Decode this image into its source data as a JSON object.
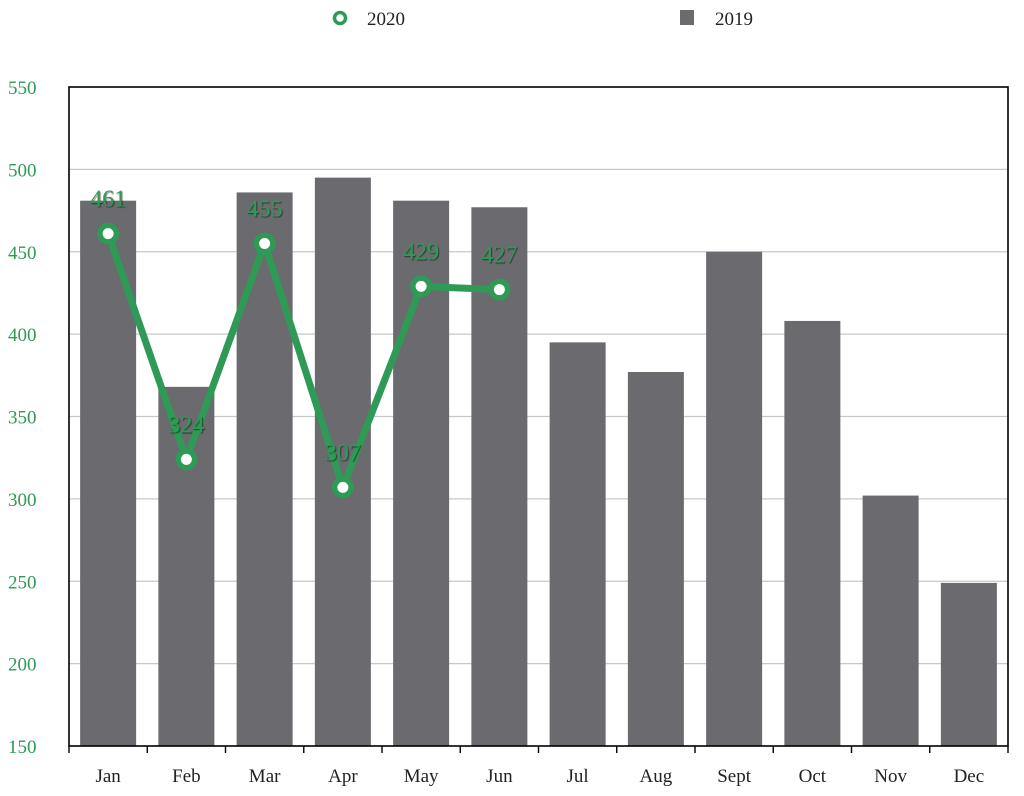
{
  "chart_data": {
    "type": "bar",
    "title": "",
    "xlabel": "",
    "ylabel": "",
    "categories": [
      "Jan",
      "Feb",
      "Mar",
      "Apr",
      "May",
      "Jun",
      "Jul",
      "Aug",
      "Sept",
      "Oct",
      "Nov",
      "Dec"
    ],
    "ylim": [
      150,
      550
    ],
    "yticks": [
      "150",
      "200",
      "250",
      "300",
      "350",
      "400",
      "450",
      "500",
      "550"
    ],
    "grid": true,
    "legend_position": "top",
    "series": [
      {
        "name": "2019",
        "kind": "bar",
        "color": "#6b6a6f",
        "values": [
          481,
          368,
          486,
          495,
          481,
          477,
          395,
          377,
          450,
          408,
          302,
          249
        ]
      },
      {
        "name": "2020",
        "kind": "line",
        "color": "#2e9a55",
        "values": [
          461,
          324,
          455,
          307,
          429,
          427,
          null,
          null,
          null,
          null,
          null,
          null
        ],
        "data_labels": [
          "461",
          "324",
          "455",
          "307",
          "429",
          "427"
        ]
      }
    ],
    "colors": {
      "axis_tick_label": "#2e9a55",
      "category_label": "#222222",
      "grid": "#c8c8c8",
      "axis": "#000000"
    }
  }
}
